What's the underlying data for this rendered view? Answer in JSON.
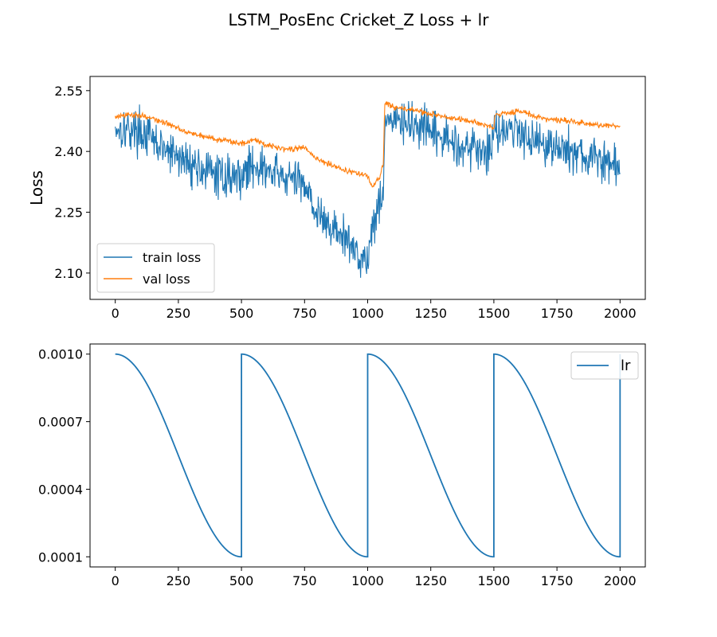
{
  "figure": {
    "suptitle": "LSTM_PosEnc Cricket_Z Loss + lr"
  },
  "chart_data": [
    {
      "type": "line",
      "ylabel": "Loss",
      "xlabel": "",
      "xlim": [
        -100,
        2100
      ],
      "ylim": [
        2.035,
        2.585
      ],
      "x_ticks": [
        0,
        250,
        500,
        750,
        1000,
        1250,
        1500,
        1750,
        2000
      ],
      "y_ticks": [
        2.1,
        2.25,
        2.4,
        2.55
      ],
      "y_tick_labels": [
        "2.10",
        "2.25",
        "2.40",
        "2.55"
      ],
      "legend_position": "lower-left",
      "grid": false,
      "series": [
        {
          "name": "train loss",
          "color": "#1f77b4",
          "noise": 0.04,
          "points": [
            [
              0,
              2.46
            ],
            [
              100,
              2.45
            ],
            [
              200,
              2.4
            ],
            [
              300,
              2.37
            ],
            [
              400,
              2.34
            ],
            [
              500,
              2.34
            ],
            [
              550,
              2.37
            ],
            [
              600,
              2.35
            ],
            [
              700,
              2.33
            ],
            [
              760,
              2.32
            ],
            [
              800,
              2.24
            ],
            [
              900,
              2.19
            ],
            [
              960,
              2.15
            ],
            [
              1000,
              2.13
            ],
            [
              1020,
              2.22
            ],
            [
              1050,
              2.28
            ],
            [
              1062,
              2.32
            ],
            [
              1070,
              2.48
            ],
            [
              1100,
              2.475
            ],
            [
              1200,
              2.46
            ],
            [
              1300,
              2.43
            ],
            [
              1400,
              2.41
            ],
            [
              1490,
              2.4
            ],
            [
              1500,
              2.46
            ],
            [
              1600,
              2.45
            ],
            [
              1700,
              2.42
            ],
            [
              1800,
              2.4
            ],
            [
              1900,
              2.38
            ],
            [
              2000,
              2.36
            ]
          ]
        },
        {
          "name": "val loss",
          "color": "#ff7f0e",
          "noise": 0.007,
          "points": [
            [
              0,
              2.485
            ],
            [
              60,
              2.49
            ],
            [
              100,
              2.49
            ],
            [
              200,
              2.47
            ],
            [
              300,
              2.445
            ],
            [
              400,
              2.43
            ],
            [
              500,
              2.42
            ],
            [
              560,
              2.43
            ],
            [
              600,
              2.415
            ],
            [
              700,
              2.405
            ],
            [
              750,
              2.41
            ],
            [
              800,
              2.38
            ],
            [
              850,
              2.37
            ],
            [
              900,
              2.355
            ],
            [
              1000,
              2.34
            ],
            [
              1020,
              2.31
            ],
            [
              1050,
              2.34
            ],
            [
              1062,
              2.37
            ],
            [
              1068,
              2.52
            ],
            [
              1100,
              2.51
            ],
            [
              1200,
              2.5
            ],
            [
              1300,
              2.485
            ],
            [
              1400,
              2.475
            ],
            [
              1500,
              2.46
            ],
            [
              1505,
              2.49
            ],
            [
              1600,
              2.5
            ],
            [
              1700,
              2.48
            ],
            [
              1800,
              2.475
            ],
            [
              1900,
              2.465
            ],
            [
              2000,
              2.462
            ]
          ]
        }
      ]
    },
    {
      "type": "line",
      "ylabel": "",
      "xlabel": "",
      "xlim": [
        -100,
        2100
      ],
      "ylim": [
        5.5e-05,
        0.001045
      ],
      "x_ticks": [
        0,
        250,
        500,
        750,
        1000,
        1250,
        1500,
        1750,
        2000
      ],
      "y_ticks": [
        0.0001,
        0.0004,
        0.0007,
        0.001
      ],
      "y_tick_labels": [
        "0.0001",
        "0.0004",
        "0.0007",
        "0.0010"
      ],
      "legend_position": "top-right",
      "grid": false,
      "series": [
        {
          "name": "lr",
          "color": "#1f77b4",
          "schedule": "cosine annealing with warm restarts",
          "max_lr": 0.001,
          "min_lr": 0.0001,
          "period": 500,
          "x_range": [
            0,
            2000
          ]
        }
      ]
    }
  ]
}
